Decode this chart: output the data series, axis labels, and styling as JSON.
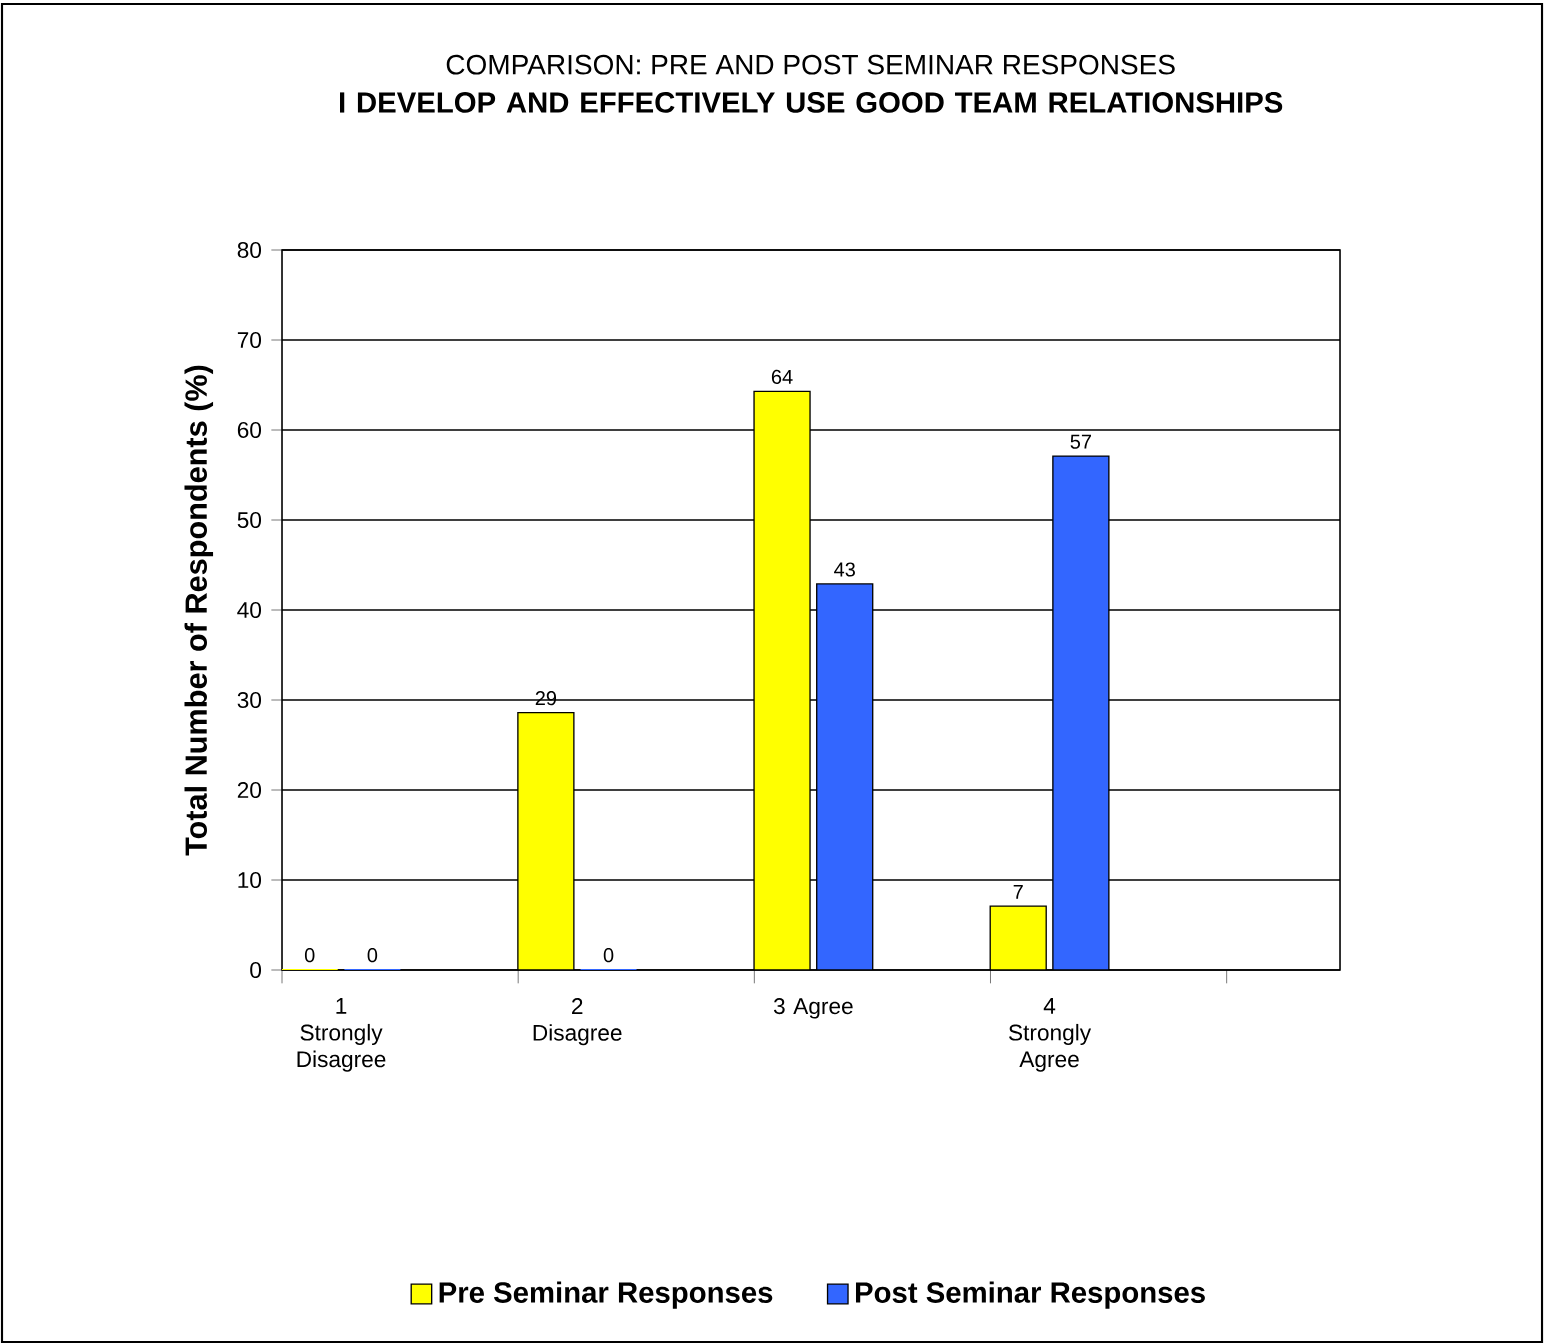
{
  "chart_data": {
    "type": "bar",
    "title": "COMPARISON: PRE AND POST SEMINAR RESPONSES",
    "subtitle": "I DEVELOP AND EFFECTIVELY USE GOOD TEAM RELATIONSHIPS",
    "ylabel": "Total Number of Respondents (%)",
    "categories": [
      "1 Strongly Disagree",
      "2 Disagree",
      "3 Agree",
      "4 Strongly Agree"
    ],
    "series": [
      {
        "name": "Pre Seminar Responses",
        "color": "#ffff00",
        "values": [
          0,
          28.6,
          64.3,
          7.1
        ],
        "value_labels": [
          "0",
          "29",
          "64",
          "7"
        ]
      },
      {
        "name": "Post Seminar Responses",
        "color": "#3366ff",
        "values": [
          0,
          0,
          42.9,
          57.1
        ],
        "value_labels": [
          "0",
          "0",
          "43",
          "57"
        ]
      }
    ],
    "ylim": [
      0,
      80
    ],
    "yticks": [
      0,
      10,
      20,
      30,
      40,
      50,
      60,
      70,
      80
    ],
    "grid": "y",
    "legend": "bottom"
  }
}
